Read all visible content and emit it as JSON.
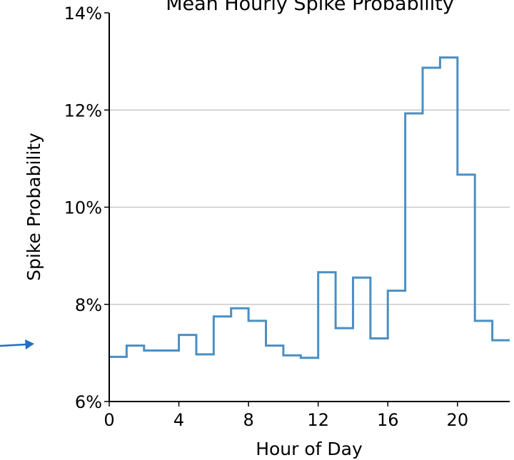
{
  "chart_data": {
    "type": "line",
    "step": "post",
    "title": "Mean Hourly Spike Probability",
    "xlabel": "Hour of Day",
    "ylabel": "Spike Probability",
    "xlim": [
      0,
      23
    ],
    "ylim": [
      6,
      14
    ],
    "x_ticks": [
      0,
      4,
      8,
      12,
      16,
      20
    ],
    "y_ticks": [
      6,
      8,
      10,
      12,
      14
    ],
    "y_tick_labels": [
      "6%",
      "8%",
      "10%",
      "12%",
      "14%"
    ],
    "grid": "horizontal",
    "line_color": "#4a8fc4",
    "series": [
      {
        "x": [
          0,
          1,
          2,
          3,
          4,
          5,
          6,
          7,
          8,
          9,
          10,
          11,
          12,
          13,
          14,
          15,
          16,
          17,
          18,
          19,
          20,
          21,
          22
        ],
        "values": [
          6.92,
          7.15,
          7.05,
          7.05,
          7.37,
          6.97,
          7.75,
          7.92,
          7.66,
          7.15,
          6.95,
          6.9,
          8.66,
          7.51,
          8.55,
          7.3,
          8.28,
          11.93,
          12.87,
          13.08,
          10.67,
          7.66,
          7.26
        ]
      }
    ]
  },
  "annotation": {
    "arrow_color": "#1f6fc5"
  }
}
